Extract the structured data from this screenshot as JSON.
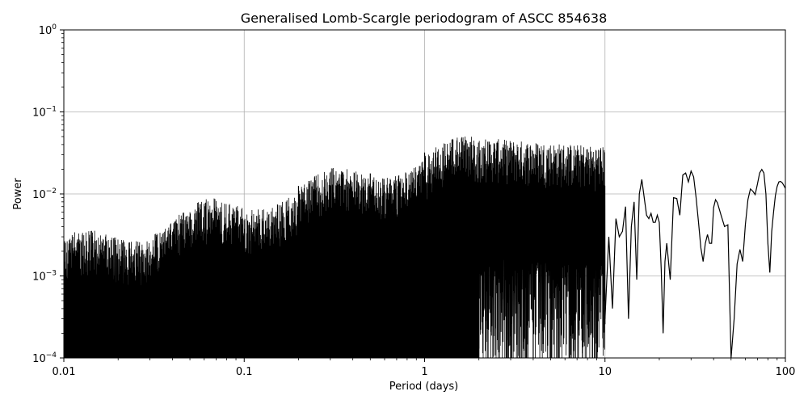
{
  "chart_data": {
    "type": "line",
    "title": "Generalised Lomb-Scargle periodogram of ASCC 854638",
    "xlabel": "Period (days)",
    "ylabel": "Power",
    "xscale": "log",
    "yscale": "log",
    "xlim": [
      0.01,
      100
    ],
    "ylim": [
      0.0001,
      1
    ],
    "grid": true,
    "color": "#000000",
    "xticks": [
      {
        "value": 0.01,
        "label": "0.01"
      },
      {
        "value": 0.1,
        "label": "0.1"
      },
      {
        "value": 1,
        "label": "1"
      },
      {
        "value": 10,
        "label": "10"
      },
      {
        "value": 100,
        "label": "100"
      }
    ],
    "yticks": [
      {
        "value": 0.0001,
        "base": "10",
        "exp": "−4"
      },
      {
        "value": 0.001,
        "base": "10",
        "exp": "−3"
      },
      {
        "value": 0.01,
        "base": "10",
        "exp": "−2"
      },
      {
        "value": 0.1,
        "base": "10",
        "exp": "−1"
      },
      {
        "value": 1,
        "base": "10",
        "exp": "0"
      }
    ],
    "series": [
      {
        "name": "",
        "x": [
          10,
          10.5,
          11,
          11.5,
          12,
          12.5,
          13,
          13.5,
          14,
          14.5,
          15,
          15.5,
          16,
          16.5,
          17,
          17.5,
          18,
          18.5,
          19,
          19.5,
          20,
          20.5,
          21,
          21.5,
          22,
          23,
          24,
          25,
          26,
          27,
          28,
          29,
          30,
          31,
          32,
          33,
          34,
          35,
          36,
          37,
          38,
          39,
          40,
          41,
          42,
          44,
          46,
          48,
          50,
          52,
          54,
          56,
          58,
          60,
          62,
          64,
          66,
          68,
          70,
          72,
          74,
          76,
          78,
          80,
          82,
          84,
          86,
          88,
          90,
          92,
          94,
          96,
          98,
          100
        ],
        "y": [
          0.0003,
          0.003,
          0.0004,
          0.005,
          0.003,
          0.0035,
          0.007,
          0.0003,
          0.004,
          0.008,
          0.0009,
          0.01,
          0.015,
          0.009,
          0.0055,
          0.005,
          0.0058,
          0.0045,
          0.0045,
          0.0055,
          0.0045,
          0.0012,
          0.0002,
          0.0015,
          0.0025,
          0.0009,
          0.009,
          0.0088,
          0.0055,
          0.017,
          0.018,
          0.014,
          0.019,
          0.0162,
          0.009,
          0.0045,
          0.0022,
          0.0015,
          0.0025,
          0.0032,
          0.0025,
          0.0025,
          0.0068,
          0.0085,
          0.0078,
          0.0055,
          0.004,
          0.0042,
          0.0001,
          0.0003,
          0.0014,
          0.0021,
          0.0015,
          0.0042,
          0.0085,
          0.0115,
          0.0108,
          0.0098,
          0.0132,
          0.018,
          0.0199,
          0.018,
          0.01,
          0.0025,
          0.0011,
          0.0035,
          0.006,
          0.0095,
          0.0123,
          0.014,
          0.0142,
          0.0137,
          0.0127,
          0.0117
        ]
      }
    ],
    "dense_peaks": [
      {
        "x": 0.2,
        "y": 0.0125
      },
      {
        "x": 0.25,
        "y": 0.0085
      },
      {
        "x": 0.33,
        "y": 0.013
      },
      {
        "x": 0.43,
        "y": 0.0135
      },
      {
        "x": 0.5,
        "y": 0.0178
      },
      {
        "x": 0.67,
        "y": 0.0085
      },
      {
        "x": 0.83,
        "y": 0.009
      },
      {
        "x": 0.91,
        "y": 0.0075
      },
      {
        "x": 1,
        "y": 0.032
      },
      {
        "x": 1.08,
        "y": 0.0195
      },
      {
        "x": 1.33,
        "y": 0.0125
      },
      {
        "x": 1.5,
        "y": 0.0098
      },
      {
        "x": 2,
        "y": 0.0065
      },
      {
        "x": 3,
        "y": 0.0055
      },
      {
        "x": 4,
        "y": 0.0069
      },
      {
        "x": 5,
        "y": 0.01
      },
      {
        "x": 7.5,
        "y": 0.0072
      },
      {
        "x": 9,
        "y": 0.009
      }
    ]
  }
}
